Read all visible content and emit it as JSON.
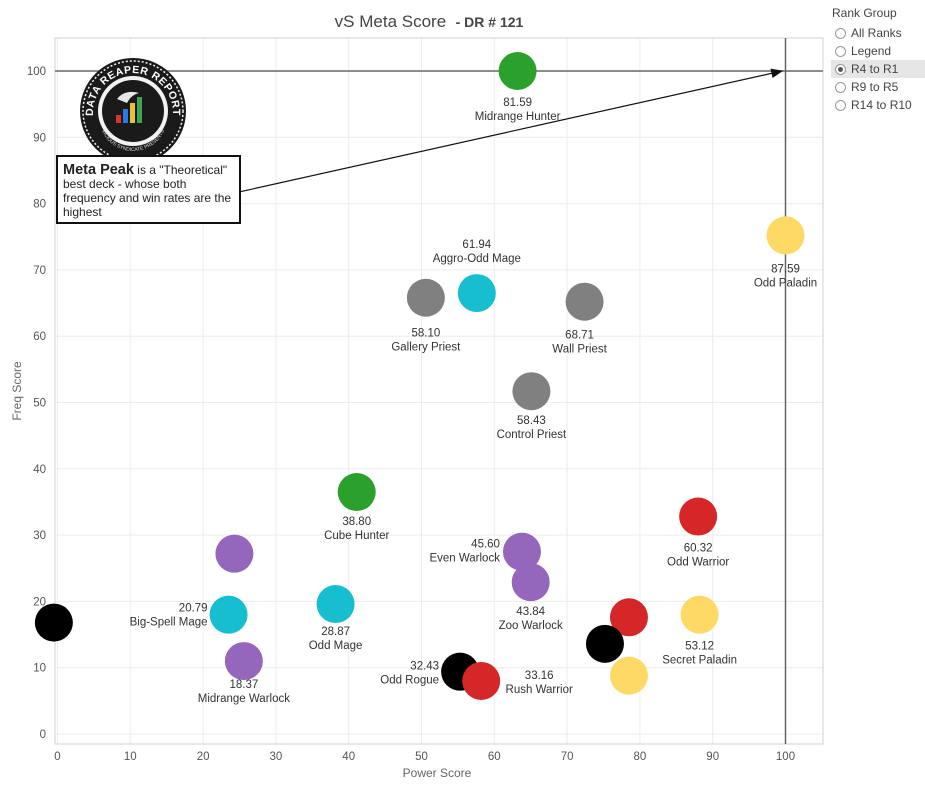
{
  "chart_data": {
    "type": "scatter",
    "title": "vS Meta Score",
    "subtitle": "- DR # 121",
    "xlabel": "Power Score",
    "ylabel": "Freq Score",
    "xlim": [
      0,
      105
    ],
    "ylim": [
      -1,
      105
    ],
    "xticks": [
      0,
      10,
      20,
      30,
      40,
      50,
      60,
      70,
      80,
      90,
      100
    ],
    "yticks": [
      0,
      10,
      20,
      30,
      40,
      50,
      60,
      70,
      80,
      90,
      100
    ],
    "grid": true,
    "reference_lines": {
      "x": 100,
      "y": 100
    },
    "points": [
      {
        "name": "Midrange Hunter",
        "score": "81.59",
        "x": 63.2,
        "y": 100.0,
        "color": "#2ca02c"
      },
      {
        "name": "Odd Paladin",
        "score": "87.59",
        "x": 100.0,
        "y": 75.2,
        "color": "#ffd966"
      },
      {
        "name": "Aggro-Odd Mage",
        "score": "61.94",
        "x": 57.6,
        "y": 66.5,
        "color": "#17becf"
      },
      {
        "name": "Gallery Priest",
        "score": "58.10",
        "x": 50.6,
        "y": 65.8,
        "color": "#808080"
      },
      {
        "name": "Wall Priest",
        "score": "68.71",
        "x": 72.4,
        "y": 65.2,
        "color": "#808080"
      },
      {
        "name": "Control Priest",
        "score": "58.43",
        "x": 65.1,
        "y": 51.7,
        "color": "#808080"
      },
      {
        "name": "Cube Hunter",
        "score": "38.80",
        "x": 41.1,
        "y": 36.5,
        "color": "#2ca02c"
      },
      {
        "name": "Odd Warrior",
        "score": "60.32",
        "x": 88.0,
        "y": 32.8,
        "color": "#d62728"
      },
      {
        "name": "Even Warlock",
        "score": "45.60",
        "x": 63.8,
        "y": 27.5,
        "color": "#9467bd"
      },
      {
        "name": "Zoo Warlock",
        "score": "43.84",
        "x": 65.0,
        "y": 22.9,
        "color": "#9467bd"
      },
      {
        "name": "",
        "score": "",
        "x": 24.3,
        "y": 27.2,
        "color": "#9467bd"
      },
      {
        "name": "Big-Spell Mage",
        "score": "20.79",
        "x": 23.5,
        "y": 18.0,
        "color": "#17becf"
      },
      {
        "name": "Odd Mage",
        "score": "28.87",
        "x": 38.2,
        "y": 19.6,
        "color": "#17becf"
      },
      {
        "name": "Secret Paladin",
        "score": "53.12",
        "x": 88.2,
        "y": 18.0,
        "color": "#ffd966"
      },
      {
        "name": "",
        "score": "",
        "x": 78.5,
        "y": 17.6,
        "color": "#d62728"
      },
      {
        "name": "",
        "score": "",
        "x": 75.2,
        "y": 13.6,
        "color": "#000000"
      },
      {
        "name": "Midrange Warlock",
        "score": "18.37",
        "x": 25.6,
        "y": 11.0,
        "color": "#9467bd"
      },
      {
        "name": "Odd Rogue",
        "score": "32.43",
        "x": 55.3,
        "y": 9.4,
        "color": "#000000"
      },
      {
        "name": "Rush Warrior",
        "score": "33.16",
        "x": 58.2,
        "y": 8.0,
        "color": "#d62728"
      },
      {
        "name": "",
        "score": "",
        "x": 78.5,
        "y": 8.8,
        "color": "#ffd966"
      },
      {
        "name": "",
        "score": "",
        "x": -0.5,
        "y": 16.8,
        "color": "#000000"
      }
    ]
  },
  "annotation": {
    "bold": "Meta Peak",
    "text": " is a \"Theoretical\" best deck - whose both frequency and win rates are the highest"
  },
  "logo": {
    "text_top": "DATA REAPER REPORT",
    "text_bottom": "VICIOUS SYNDICATE PRESENTS"
  },
  "rank_group": {
    "title": "Rank Group",
    "options": [
      "All Ranks",
      "Legend",
      "R4 to R1",
      "R9 to R5",
      "R14 to R10"
    ],
    "selected": 2
  }
}
